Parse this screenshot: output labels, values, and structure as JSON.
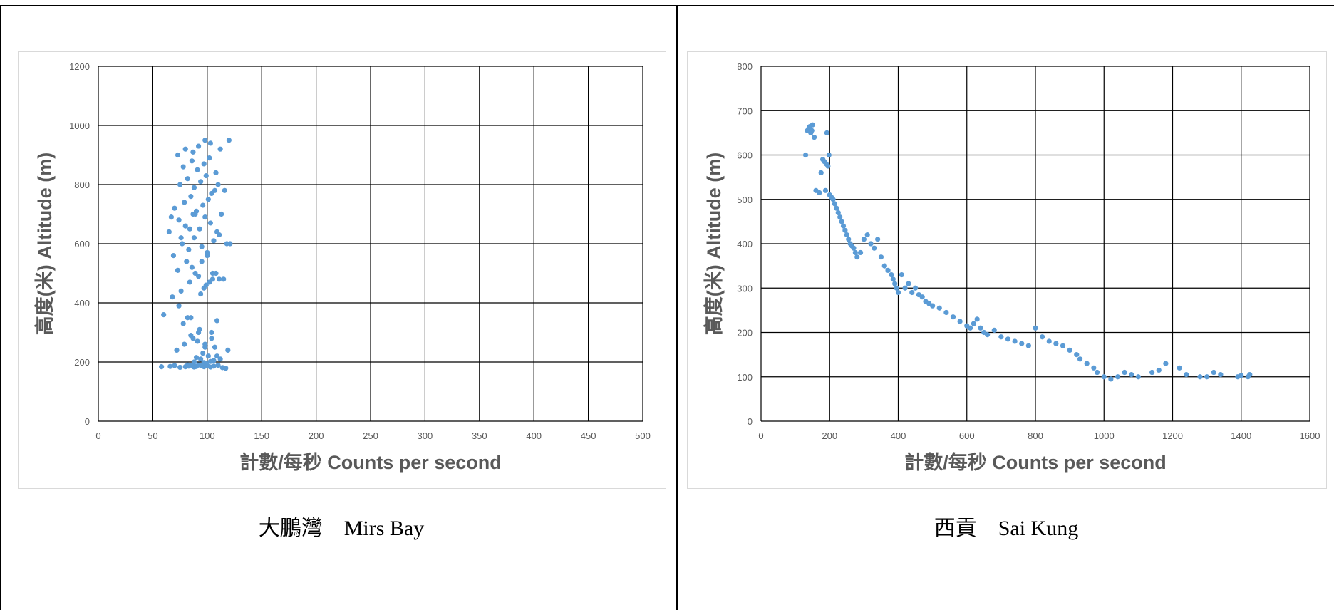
{
  "colors": {
    "marker": "#5B9BD5",
    "grid": "#000000",
    "tick_label": "#595959",
    "axis_title": "#595959",
    "frame_border": "#000000",
    "chart_border": "#d9d9d9"
  },
  "panels": [
    {
      "caption": "大鵬灣　Mirs Bay"
    },
    {
      "caption": "西貢　Sai Kung"
    }
  ],
  "chart_data": [
    {
      "type": "scatter",
      "title": "",
      "xlabel": "計數/每秒  Counts per second",
      "ylabel": "高度(米)  Altitude (m)",
      "xlim": [
        0,
        500
      ],
      "ylim": [
        0,
        1200
      ],
      "x_ticks": [
        0,
        50,
        100,
        150,
        200,
        250,
        300,
        350,
        400,
        450,
        500
      ],
      "y_ticks": [
        0,
        200,
        400,
        600,
        800,
        1000,
        1200
      ],
      "grid": true,
      "legend": "none",
      "series": [
        {
          "x": [
            58,
            66,
            70,
            75,
            80,
            83,
            86,
            88,
            90,
            92,
            95,
            97,
            100,
            103,
            106,
            110,
            114,
            117,
            60,
            68,
            74,
            78,
            82,
            87,
            93,
            98,
            104,
            109,
            72,
            79,
            85,
            91,
            96,
            101,
            107,
            112,
            76,
            84,
            89,
            94,
            99,
            105,
            73,
            81,
            86,
            92,
            97,
            102,
            108,
            115,
            69,
            77,
            83,
            88,
            95,
            100,
            106,
            111,
            118,
            65,
            74,
            80,
            87,
            93,
            98,
            103,
            109,
            70,
            79,
            85,
            90,
            96,
            101,
            107,
            113,
            67,
            75,
            82,
            88,
            94,
            99,
            104,
            110,
            116,
            78,
            86,
            91,
            97,
            102,
            108,
            73,
            80,
            87,
            92,
            98,
            103,
            112,
            120,
            76,
            84,
            89,
            95,
            100,
            105,
            111,
            85,
            92,
            98,
            104,
            119,
            88,
            94,
            99,
            106,
            82,
            90,
            97,
            103,
            109,
            121
          ],
          "y": [
            184,
            185,
            188,
            182,
            184,
            186,
            189,
            183,
            185,
            190,
            187,
            184,
            188,
            183,
            186,
            189,
            181,
            179,
            360,
            420,
            390,
            330,
            350,
            280,
            310,
            250,
            300,
            340,
            240,
            260,
            290,
            270,
            230,
            220,
            250,
            210,
            440,
            470,
            500,
            430,
            460,
            480,
            510,
            540,
            520,
            490,
            450,
            470,
            500,
            480,
            560,
            600,
            580,
            620,
            590,
            570,
            610,
            630,
            600,
            640,
            680,
            660,
            700,
            650,
            690,
            670,
            640,
            720,
            740,
            760,
            710,
            730,
            750,
            780,
            700,
            690,
            800,
            820,
            790,
            810,
            830,
            770,
            800,
            780,
            860,
            880,
            850,
            870,
            890,
            840,
            900,
            920,
            910,
            930,
            950,
            940,
            920,
            950,
            620,
            650,
            700,
            540,
            560,
            500,
            480,
            350,
            300,
            260,
            280,
            240,
            200,
            210,
            195,
            205,
            190,
            215,
            198,
            202,
            220,
            600
          ]
        }
      ]
    },
    {
      "type": "scatter",
      "title": "",
      "xlabel": "計數/每秒  Counts per second",
      "ylabel": "高度(米)  Altitude (m)",
      "xlim": [
        0,
        1600
      ],
      "ylim": [
        0,
        800
      ],
      "x_ticks": [
        0,
        200,
        400,
        600,
        800,
        1000,
        1200,
        1400,
        1600
      ],
      "y_ticks": [
        0,
        100,
        200,
        300,
        400,
        500,
        600,
        700,
        800
      ],
      "grid": true,
      "legend": "none",
      "series": [
        {
          "x": [
            130,
            135,
            140,
            145,
            150,
            155,
            142,
            148,
            160,
            170,
            180,
            185,
            190,
            195,
            200,
            205,
            175,
            188,
            192,
            198,
            210,
            215,
            220,
            225,
            230,
            235,
            240,
            245,
            250,
            255,
            260,
            265,
            270,
            275,
            280,
            290,
            300,
            310,
            320,
            330,
            340,
            350,
            360,
            370,
            380,
            385,
            390,
            395,
            400,
            410,
            420,
            430,
            440,
            450,
            460,
            470,
            480,
            490,
            500,
            520,
            540,
            560,
            580,
            600,
            610,
            620,
            630,
            640,
            650,
            660,
            680,
            700,
            720,
            740,
            760,
            780,
            800,
            820,
            840,
            860,
            880,
            900,
            920,
            930,
            950,
            970,
            980,
            1000,
            1020,
            1040,
            1060,
            1080,
            1100,
            1140,
            1160,
            1180,
            1220,
            1240,
            1280,
            1300,
            1320,
            1340,
            1390,
            1400,
            1420,
            1425
          ],
          "y": [
            600,
            655,
            662,
            650,
            668,
            640,
            664,
            655,
            520,
            515,
            590,
            585,
            580,
            575,
            510,
            505,
            560,
            520,
            650,
            600,
            500,
            490,
            480,
            470,
            460,
            450,
            440,
            430,
            420,
            410,
            400,
            395,
            390,
            380,
            370,
            380,
            410,
            420,
            400,
            390,
            410,
            370,
            350,
            340,
            330,
            320,
            310,
            300,
            290,
            330,
            300,
            310,
            290,
            300,
            285,
            280,
            270,
            265,
            260,
            255,
            245,
            235,
            225,
            215,
            210,
            220,
            230,
            210,
            200,
            195,
            205,
            190,
            185,
            180,
            175,
            170,
            210,
            190,
            180,
            175,
            170,
            160,
            150,
            140,
            130,
            120,
            110,
            100,
            95,
            100,
            110,
            105,
            100,
            110,
            115,
            130,
            120,
            105,
            100,
            100,
            110,
            105,
            100,
            103,
            100,
            105
          ]
        }
      ]
    }
  ]
}
